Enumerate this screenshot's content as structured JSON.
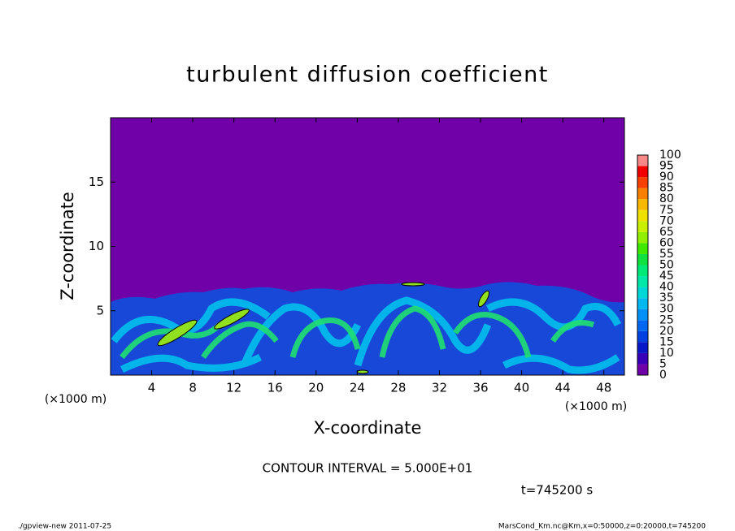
{
  "chart_data": {
    "type": "contour",
    "title": "turbulent diffusion coefficient",
    "xlabel": "X-coordinate",
    "ylabel": "Z-coordinate",
    "x_unit": "(×1000 m)",
    "y_unit": "(×1000 m)",
    "xlim": [
      0,
      50
    ],
    "ylim": [
      0,
      20
    ],
    "xticks": [
      4,
      8,
      12,
      16,
      20,
      24,
      28,
      32,
      36,
      40,
      44,
      48
    ],
    "yticks": [
      5,
      10,
      15
    ],
    "colorbar": {
      "levels": [
        0,
        5,
        10,
        15,
        20,
        25,
        30,
        35,
        40,
        45,
        50,
        55,
        60,
        65,
        70,
        75,
        80,
        85,
        90,
        95,
        100
      ],
      "colors": [
        "#7000a8",
        "#3800b8",
        "#0818c8",
        "#0040e0",
        "#0068f0",
        "#0090f8",
        "#00b8f0",
        "#00d8d8",
        "#00e8a8",
        "#00e878",
        "#10e040",
        "#40e800",
        "#90f000",
        "#c8f000",
        "#f0e000",
        "#f8b800",
        "#f88000",
        "#f84000",
        "#f00000",
        "#f88888"
      ]
    },
    "contour_interval": "CONTOUR INTERVAL = 5.000E+01",
    "time_label": "t=745200 s",
    "footer_left": "./gpview-new   2011-07-25",
    "footer_right": "MarsCond_Km.nc@Km,x=0:50000,z=0:20000,t=745200"
  }
}
